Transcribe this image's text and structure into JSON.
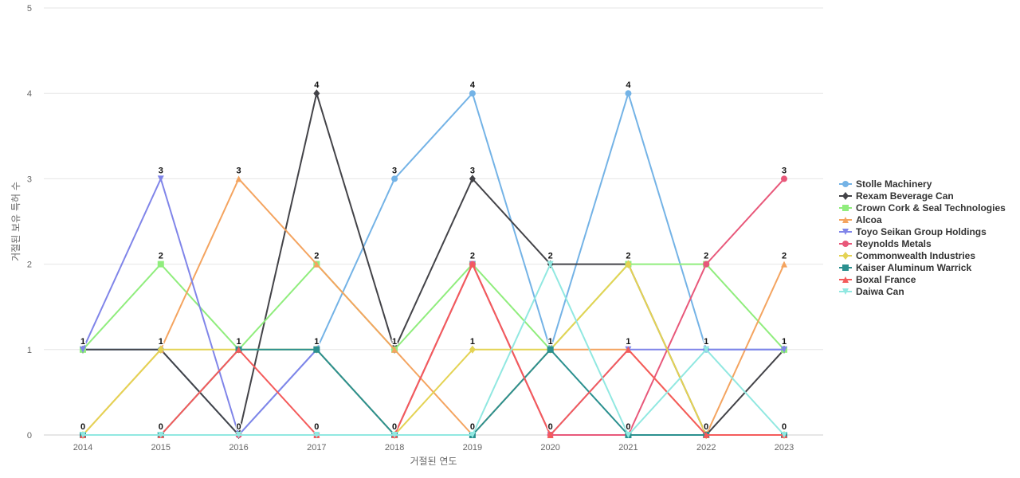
{
  "chart_data": {
    "type": "line",
    "title": "",
    "xlabel": "거절된 연도",
    "ylabel": "거절된 보유 특허 수",
    "x": [
      2014,
      2015,
      2016,
      2017,
      2018,
      2019,
      2020,
      2021,
      2022,
      2023
    ],
    "ylim": [
      0,
      5
    ],
    "yticks": [
      0,
      1,
      2,
      3,
      4,
      5
    ],
    "grid": true,
    "legend_position": "right",
    "series": [
      {
        "name": "Stolle Machinery",
        "color": "#74b3e6",
        "marker": "circle",
        "values": [
          1,
          1,
          0,
          1,
          3,
          4,
          1,
          4,
          1,
          1
        ]
      },
      {
        "name": "Rexam Beverage Can",
        "color": "#434348",
        "marker": "diamond",
        "values": [
          1,
          1,
          0,
          4,
          1,
          3,
          2,
          2,
          0,
          1
        ]
      },
      {
        "name": "Crown Cork & Seal Technologies",
        "color": "#90ed7d",
        "marker": "square",
        "values": [
          1,
          2,
          1,
          2,
          1,
          2,
          1,
          2,
          2,
          1
        ]
      },
      {
        "name": "Alcoa",
        "color": "#f4a460",
        "marker": "triangle",
        "values": [
          0,
          1,
          3,
          2,
          1,
          0,
          1,
          1,
          0,
          2
        ]
      },
      {
        "name": "Toyo Seikan Group Holdings",
        "color": "#8085e9",
        "marker": "triangle-down",
        "values": [
          1,
          3,
          0,
          1,
          0,
          2,
          0,
          1,
          1,
          1
        ]
      },
      {
        "name": "Reynolds Metals",
        "color": "#e8587a",
        "marker": "circle",
        "values": [
          0,
          0,
          0,
          0,
          0,
          2,
          0,
          0,
          2,
          3
        ]
      },
      {
        "name": "Commonwealth Industries",
        "color": "#e4d354",
        "marker": "diamond",
        "values": [
          0,
          1,
          1,
          1,
          0,
          1,
          1,
          2,
          0,
          0
        ]
      },
      {
        "name": "Kaiser Aluminum Warrick",
        "color": "#2b908f",
        "marker": "square",
        "values": [
          0,
          0,
          1,
          1,
          0,
          0,
          1,
          0,
          0,
          0
        ]
      },
      {
        "name": "Boxal France",
        "color": "#f45b5b",
        "marker": "triangle",
        "values": [
          0,
          0,
          1,
          0,
          0,
          2,
          0,
          1,
          0,
          0
        ]
      },
      {
        "name": "Daiwa Can",
        "color": "#91e8e1",
        "marker": "triangle-down",
        "values": [
          0,
          0,
          0,
          0,
          0,
          0,
          2,
          0,
          1,
          0
        ]
      }
    ],
    "data_labels": [
      {
        "x": 2014,
        "y": 1,
        "text": "1"
      },
      {
        "x": 2014,
        "y": 0,
        "text": "0"
      },
      {
        "x": 2015,
        "y": 3,
        "text": "3"
      },
      {
        "x": 2015,
        "y": 2,
        "text": "2"
      },
      {
        "x": 2015,
        "y": 1,
        "text": "1"
      },
      {
        "x": 2015,
        "y": 0,
        "text": "0"
      },
      {
        "x": 2016,
        "y": 3,
        "text": "3"
      },
      {
        "x": 2016,
        "y": 1,
        "text": "1"
      },
      {
        "x": 2016,
        "y": 0,
        "text": "0"
      },
      {
        "x": 2017,
        "y": 4,
        "text": "4"
      },
      {
        "x": 2017,
        "y": 2,
        "text": "2"
      },
      {
        "x": 2017,
        "y": 1,
        "text": "1"
      },
      {
        "x": 2017,
        "y": 0,
        "text": "0"
      },
      {
        "x": 2018,
        "y": 3,
        "text": "3"
      },
      {
        "x": 2018,
        "y": 1,
        "text": "1"
      },
      {
        "x": 2018,
        "y": 0,
        "text": "0"
      },
      {
        "x": 2019,
        "y": 4,
        "text": "4"
      },
      {
        "x": 2019,
        "y": 3,
        "text": "3"
      },
      {
        "x": 2019,
        "y": 2,
        "text": "2"
      },
      {
        "x": 2019,
        "y": 1,
        "text": "1"
      },
      {
        "x": 2019,
        "y": 0,
        "text": "0"
      },
      {
        "x": 2020,
        "y": 2,
        "text": "2"
      },
      {
        "x": 2020,
        "y": 1,
        "text": "1"
      },
      {
        "x": 2020,
        "y": 0,
        "text": "0"
      },
      {
        "x": 2021,
        "y": 4,
        "text": "4"
      },
      {
        "x": 2021,
        "y": 2,
        "text": "2"
      },
      {
        "x": 2021,
        "y": 1,
        "text": "1"
      },
      {
        "x": 2021,
        "y": 0,
        "text": "0"
      },
      {
        "x": 2022,
        "y": 2,
        "text": "2"
      },
      {
        "x": 2022,
        "y": 1,
        "text": "1"
      },
      {
        "x": 2022,
        "y": 0,
        "text": "0"
      },
      {
        "x": 2023,
        "y": 3,
        "text": "3"
      },
      {
        "x": 2023,
        "y": 2,
        "text": "2"
      },
      {
        "x": 2023,
        "y": 1,
        "text": "1"
      },
      {
        "x": 2023,
        "y": 0,
        "text": "0"
      }
    ]
  }
}
